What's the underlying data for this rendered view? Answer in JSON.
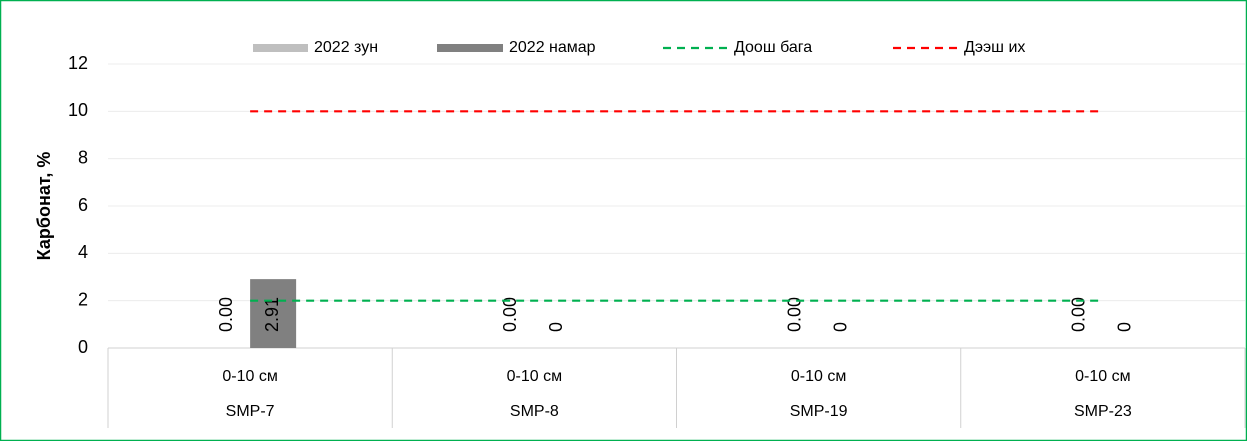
{
  "chart_data": {
    "type": "bar",
    "y_label": "Карбонат, %",
    "categories": [
      "0-10 см",
      "0-10 см",
      "0-10 см",
      "0-10 см"
    ],
    "category_groups": [
      "SMP-7",
      "SMP-8",
      "SMP-19",
      "SMP-23"
    ],
    "series": [
      {
        "name": "2022 зун",
        "type": "bar",
        "color": "#bfbfbf",
        "values": [
          0,
          0,
          0,
          0
        ],
        "value_labels": [
          "0.00",
          "0.00",
          "0.00",
          "0.00"
        ]
      },
      {
        "name": "2022 намар",
        "type": "bar",
        "color": "#808080",
        "values": [
          2.91,
          0,
          0,
          0
        ]
      },
      {
        "name": "Доош бага",
        "type": "line",
        "dashed": true,
        "color": "#00b050",
        "values": [
          2,
          2,
          2,
          2
        ]
      },
      {
        "name": "Дээш их",
        "type": "line",
        "dashed": true,
        "color": "#ff0000",
        "values": [
          10,
          10,
          10,
          10
        ]
      }
    ],
    "ylim": [
      0,
      12
    ],
    "yticks": [
      0,
      2,
      4,
      6,
      8,
      10,
      12
    ],
    "grid": true,
    "legend": "top"
  }
}
